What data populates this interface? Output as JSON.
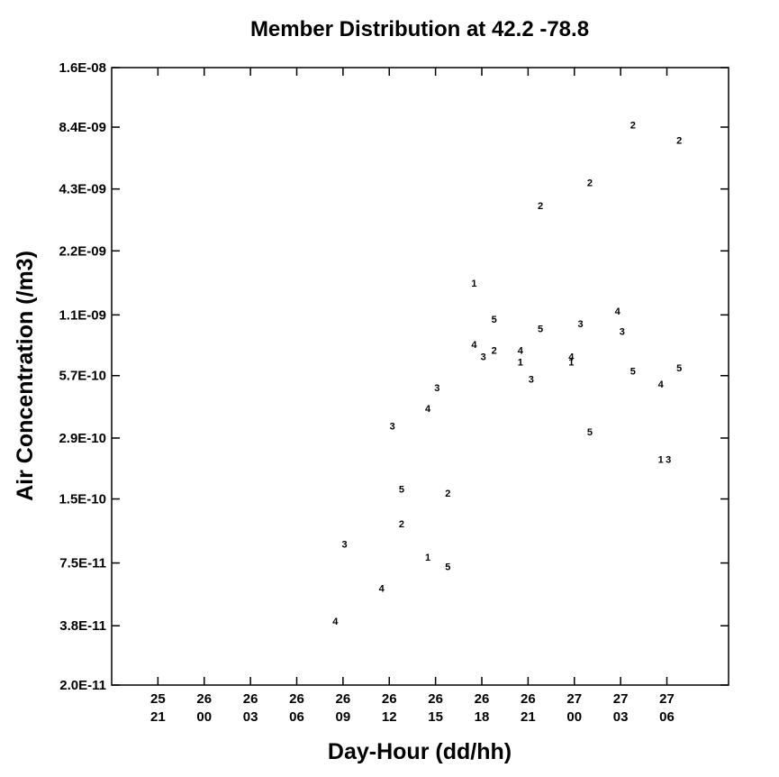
{
  "chart_data": {
    "type": "scatter",
    "title": "Member Distribution at  42.2  -78.8",
    "xlabel": "Day-Hour (dd/hh)",
    "ylabel": "Air Concentration (/m3)",
    "y_scale": "log",
    "ylim": [
      2e-11,
      1.6e-08
    ],
    "xlim": [
      "25 18",
      "27 10"
    ],
    "y_ticks": [
      {
        "value": 2e-11,
        "label": "2.0E-11"
      },
      {
        "value": 3.8e-11,
        "label": "3.8E-11"
      },
      {
        "value": 7.5e-11,
        "label": "7.5E-11"
      },
      {
        "value": 1.5e-10,
        "label": "1.5E-10"
      },
      {
        "value": 2.9e-10,
        "label": "2.9E-10"
      },
      {
        "value": 5.7e-10,
        "label": "5.7E-10"
      },
      {
        "value": 1.1e-09,
        "label": "1.1E-09"
      },
      {
        "value": 2.2e-09,
        "label": "2.2E-09"
      },
      {
        "value": 4.3e-09,
        "label": "4.3E-09"
      },
      {
        "value": 8.4e-09,
        "label": "8.4E-09"
      },
      {
        "value": 1.6e-08,
        "label": "1.6E-08"
      }
    ],
    "x_ticks": [
      {
        "value": "25 21",
        "day": "25",
        "hour": "21"
      },
      {
        "value": "26 00",
        "day": "26",
        "hour": "00"
      },
      {
        "value": "26 03",
        "day": "26",
        "hour": "03"
      },
      {
        "value": "26 06",
        "day": "26",
        "hour": "06"
      },
      {
        "value": "26 09",
        "day": "26",
        "hour": "09"
      },
      {
        "value": "26 12",
        "day": "26",
        "hour": "12"
      },
      {
        "value": "26 15",
        "day": "26",
        "hour": "15"
      },
      {
        "value": "26 18",
        "day": "26",
        "hour": "18"
      },
      {
        "value": "26 21",
        "day": "26",
        "hour": "21"
      },
      {
        "value": "27 00",
        "day": "27",
        "hour": "00"
      },
      {
        "value": "27 03",
        "day": "27",
        "hour": "03"
      },
      {
        "value": "27 06",
        "day": "27",
        "hour": "06"
      }
    ],
    "points": [
      {
        "member": "4",
        "x": "26 08.5",
        "y": 4e-11
      },
      {
        "member": "3",
        "x": "26 09.1",
        "y": 9.2e-11
      },
      {
        "member": "4",
        "x": "26 11.5",
        "y": 5.7e-11
      },
      {
        "member": "3",
        "x": "26 12.2",
        "y": 3.3e-10
      },
      {
        "member": "2",
        "x": "26 12.8",
        "y": 1.15e-10
      },
      {
        "member": "5",
        "x": "26 12.8",
        "y": 1.67e-10
      },
      {
        "member": "1",
        "x": "26 14.5",
        "y": 8e-11
      },
      {
        "member": "4",
        "x": "26 14.5",
        "y": 4e-10
      },
      {
        "member": "3",
        "x": "26 15.1",
        "y": 5e-10
      },
      {
        "member": "5",
        "x": "26 15.8",
        "y": 7.2e-11
      },
      {
        "member": "2",
        "x": "26 15.8",
        "y": 1.6e-10
      },
      {
        "member": "1",
        "x": "26 17.5",
        "y": 1.55e-09
      },
      {
        "member": "4",
        "x": "26 17.5",
        "y": 8e-10
      },
      {
        "member": "3",
        "x": "26 18.1",
        "y": 7e-10
      },
      {
        "member": "2",
        "x": "26 18.8",
        "y": 7.5e-10
      },
      {
        "member": "5",
        "x": "26 18.8",
        "y": 1.05e-09
      },
      {
        "member": "1",
        "x": "26 20.5",
        "y": 6.6e-10
      },
      {
        "member": "4",
        "x": "26 20.5",
        "y": 7.5e-10
      },
      {
        "member": "3",
        "x": "26 21.2",
        "y": 5.5e-10
      },
      {
        "member": "5",
        "x": "26 21.8",
        "y": 9.5e-10
      },
      {
        "member": "2",
        "x": "26 21.8",
        "y": 3.6e-09
      },
      {
        "member": "1",
        "x": "26 23.8",
        "y": 6.6e-10
      },
      {
        "member": "4",
        "x": "26 23.8",
        "y": 7e-10
      },
      {
        "member": "3",
        "x": "27 00.4",
        "y": 1e-09
      },
      {
        "member": "5",
        "x": "27 01.0",
        "y": 3.1e-10
      },
      {
        "member": "2",
        "x": "27 01.0",
        "y": 4.6e-09
      },
      {
        "member": "4",
        "x": "27 02.8",
        "y": 1.15e-09
      },
      {
        "member": "3",
        "x": "27 03.1",
        "y": 9.2e-10
      },
      {
        "member": "5",
        "x": "27 03.8",
        "y": 6e-10
      },
      {
        "member": "2",
        "x": "27 03.8",
        "y": 8.6e-09
      },
      {
        "member": "4",
        "x": "27 05.6",
        "y": 5.2e-10
      },
      {
        "member": "1",
        "x": "27 05.6",
        "y": 2.3e-10
      },
      {
        "member": "3",
        "x": "27 06.1",
        "y": 2.3e-10
      },
      {
        "member": "5",
        "x": "27 06.8",
        "y": 6.2e-10
      },
      {
        "member": "2",
        "x": "27 06.8",
        "y": 7.3e-09
      }
    ]
  }
}
